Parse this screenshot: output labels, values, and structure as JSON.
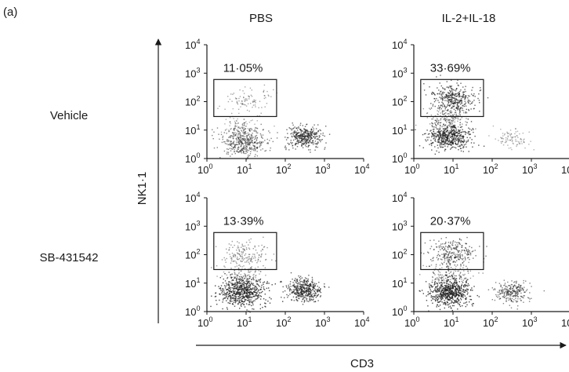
{
  "chart_data": {
    "type": "scatter",
    "panel_label": "(a)",
    "columns": [
      "PBS",
      "IL-2+IL-18"
    ],
    "rows": [
      "Vehicle",
      "SB-431542"
    ],
    "xlabel": "CD3",
    "ylabel": "NK1·1",
    "scale": "log",
    "xlim": [
      1,
      10000
    ],
    "ylim": [
      1,
      10000
    ],
    "ticks": [
      {
        "base": "10",
        "exp": "0"
      },
      {
        "base": "10",
        "exp": "1"
      },
      {
        "base": "10",
        "exp": "2"
      },
      {
        "base": "10",
        "exp": "3"
      },
      {
        "base": "10",
        "exp": "4"
      }
    ],
    "panels": [
      {
        "row": "Vehicle",
        "column": "PBS",
        "gate_label": "11·05%",
        "gate": {
          "x": [
            1.5,
            60
          ],
          "y": [
            30,
            600
          ]
        },
        "clusters": [
          {
            "x": 8,
            "y": 4,
            "spread": 0.3,
            "n": 420,
            "opacity": 0.55
          },
          {
            "x": 300,
            "y": 6,
            "spread": 0.22,
            "n": 380,
            "opacity": 0.65
          },
          {
            "x": 10,
            "y": 120,
            "spread": 0.3,
            "n": 90,
            "opacity": 0.4
          },
          {
            "x": 8,
            "y": 15,
            "spread": 0.25,
            "n": 80,
            "opacity": 0.35
          }
        ]
      },
      {
        "row": "Vehicle",
        "column": "IL-2+IL-18",
        "gate_label": "33·69%",
        "gate": {
          "x": [
            1.5,
            60
          ],
          "y": [
            30,
            600
          ]
        },
        "clusters": [
          {
            "x": 8,
            "y": 6,
            "spread": 0.28,
            "n": 520,
            "opacity": 0.75
          },
          {
            "x": 10,
            "y": 130,
            "spread": 0.28,
            "n": 360,
            "opacity": 0.7
          },
          {
            "x": 300,
            "y": 5,
            "spread": 0.22,
            "n": 90,
            "opacity": 0.35
          },
          {
            "x": 8,
            "y": 25,
            "spread": 0.25,
            "n": 140,
            "opacity": 0.45
          }
        ]
      },
      {
        "row": "SB-431542",
        "column": "PBS",
        "gate_label": "13·39%",
        "gate": {
          "x": [
            1.5,
            60
          ],
          "y": [
            30,
            600
          ]
        },
        "clusters": [
          {
            "x": 8,
            "y": 5,
            "spread": 0.3,
            "n": 600,
            "opacity": 0.8
          },
          {
            "x": 300,
            "y": 6,
            "spread": 0.22,
            "n": 420,
            "opacity": 0.7
          },
          {
            "x": 10,
            "y": 100,
            "spread": 0.3,
            "n": 160,
            "opacity": 0.45
          },
          {
            "x": 8,
            "y": 18,
            "spread": 0.25,
            "n": 120,
            "opacity": 0.4
          }
        ]
      },
      {
        "row": "SB-431542",
        "column": "IL-2+IL-18",
        "gate_label": "20·37%",
        "gate": {
          "x": [
            1.5,
            60
          ],
          "y": [
            30,
            600
          ]
        },
        "clusters": [
          {
            "x": 8,
            "y": 5,
            "spread": 0.28,
            "n": 600,
            "opacity": 0.8
          },
          {
            "x": 10,
            "y": 120,
            "spread": 0.28,
            "n": 260,
            "opacity": 0.6
          },
          {
            "x": 300,
            "y": 5,
            "spread": 0.22,
            "n": 260,
            "opacity": 0.55
          },
          {
            "x": 8,
            "y": 22,
            "spread": 0.25,
            "n": 140,
            "opacity": 0.45
          }
        ]
      }
    ]
  }
}
